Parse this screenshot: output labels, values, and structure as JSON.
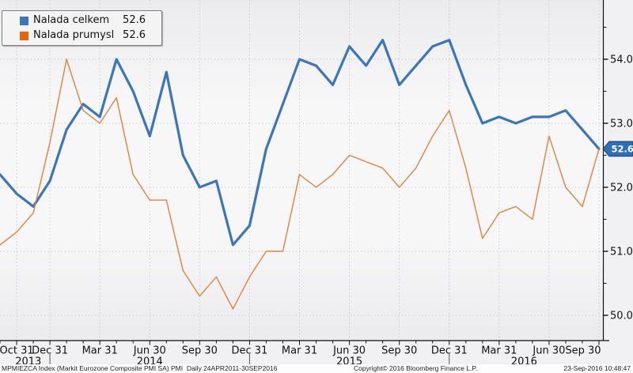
{
  "legend": {
    "items": [
      {
        "label": "Nalada celkem",
        "value": "52.6",
        "color": "#3b76b9"
      },
      {
        "label": "Nalada prumysl",
        "value": "52.6",
        "color": "#e2670f"
      }
    ]
  },
  "axes": {
    "y": {
      "side": "right",
      "major_labels": [
        "54.0",
        "53.0",
        "52.0",
        "51.0",
        "50.0"
      ],
      "major_values": [
        54.0,
        53.0,
        52.0,
        51.0,
        50.0
      ],
      "minor_values": [
        54.5,
        53.5,
        52.5,
        51.5,
        50.5
      ]
    },
    "x": {
      "tick_labels": [
        "Oct 31",
        "Dec 31",
        "Mar 31",
        "Jun 30",
        "Sep 30",
        "Dec 31",
        "Mar 31",
        "Jun 30",
        "Sep 30",
        "Dec 31",
        "Mar 31",
        "Jun 30",
        "Sep 30"
      ],
      "tick_month_indices": [
        1,
        3,
        6,
        9,
        12,
        15,
        18,
        21,
        24,
        27,
        30,
        33,
        36
      ],
      "years": [
        {
          "label": "2013",
          "center_index": 1.7
        },
        {
          "label": "2014",
          "center_index": 9
        },
        {
          "label": "2015",
          "center_index": 21
        },
        {
          "label": "2016",
          "center_index": 31.5
        }
      ],
      "year_divider_indices": [
        3,
        15,
        27
      ]
    }
  },
  "last_price_tag": {
    "text": "52.6",
    "value": 52.6,
    "fill": "#2e70b8",
    "border": "#123f75",
    "text_color": "#ffffff"
  },
  "chart_data": {
    "type": "line",
    "x": [
      "2013-09",
      "2013-10",
      "2013-11",
      "2013-12",
      "2014-01",
      "2014-02",
      "2014-03",
      "2014-04",
      "2014-05",
      "2014-06",
      "2014-07",
      "2014-08",
      "2014-09",
      "2014-10",
      "2014-11",
      "2014-12",
      "2015-01",
      "2015-02",
      "2015-03",
      "2015-04",
      "2015-05",
      "2015-06",
      "2015-07",
      "2015-08",
      "2015-09",
      "2015-10",
      "2015-11",
      "2015-12",
      "2016-01",
      "2016-02",
      "2016-03",
      "2016-04",
      "2016-05",
      "2016-06",
      "2016-07",
      "2016-08",
      "2016-09"
    ],
    "series": [
      {
        "name": "Nalada celkem",
        "color": "#3b76b9",
        "stroke_width": 3.2,
        "last_value": 52.6,
        "values": [
          52.2,
          51.9,
          51.7,
          52.1,
          52.9,
          53.3,
          53.1,
          54.0,
          53.5,
          52.8,
          53.8,
          52.5,
          52.0,
          52.1,
          51.1,
          51.4,
          52.6,
          53.3,
          54.0,
          53.9,
          53.6,
          54.2,
          53.9,
          54.3,
          53.6,
          53.9,
          54.2,
          54.3,
          53.6,
          53.0,
          53.1,
          53.0,
          53.1,
          53.1,
          53.2,
          52.9,
          52.6
        ]
      },
      {
        "name": "Nalada prumysl",
        "color": "#e0823f",
        "stroke_width": 1.4,
        "last_value": 52.6,
        "values": [
          51.1,
          51.3,
          51.6,
          52.7,
          54.0,
          53.2,
          53.0,
          53.4,
          52.2,
          51.8,
          51.8,
          50.7,
          50.3,
          50.6,
          50.1,
          50.6,
          51.0,
          51.0,
          52.2,
          52.0,
          52.2,
          52.5,
          52.4,
          52.3,
          52.0,
          52.3,
          52.8,
          53.2,
          52.3,
          51.2,
          51.6,
          51.7,
          51.5,
          52.8,
          52.0,
          51.7,
          52.6
        ]
      }
    ],
    "title": "",
    "xlabel": "",
    "ylabel": "",
    "ylim": [
      49.6,
      54.93
    ],
    "grid": "dotted",
    "legend_position": "top-left"
  },
  "footer": {
    "left": "MPMIEZCA Index (Markit Eurozone Composite PMI SA) PMI  Daily 24APR2011-30SEP2016",
    "copyright": "Copyright© 2016 Bloomberg Finance L.P.",
    "timestamp": "23-Sep-2016 10:48:47"
  },
  "colors": {
    "plot_bg_edge": "#ebebed",
    "plot_bg_center": "#f7f7f8",
    "grid": "#c7cbd3",
    "axis": "#111111",
    "text": "#111111"
  }
}
